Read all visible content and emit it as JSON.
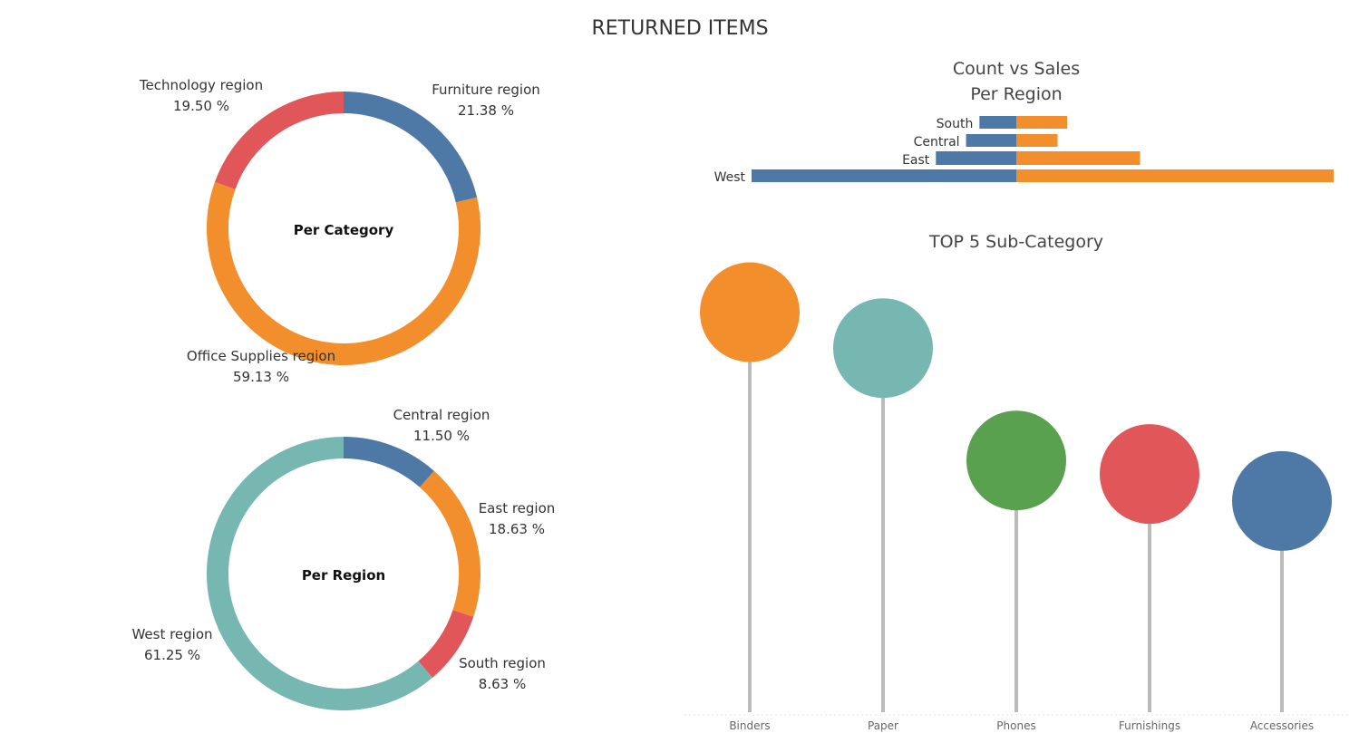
{
  "dashboard": {
    "title": "RETURNED ITEMS"
  },
  "colors": {
    "blue": "#4e79a7",
    "orange": "#f28e2b",
    "red": "#e15759",
    "teal": "#76b7b2",
    "green": "#59a14f",
    "stem": "#bbbbbb"
  },
  "chart_data": [
    {
      "type": "pie",
      "variant": "donut",
      "center_label": "Per Category",
      "slices": [
        {
          "label": "Furniture region",
          "value": 21.38,
          "value_label": "21.38 %",
          "color": "#4e79a7"
        },
        {
          "label": "Office Supplies region",
          "value": 59.13,
          "value_label": "59.13 %",
          "color": "#f28e2b"
        },
        {
          "label": "Technology region",
          "value": 19.5,
          "value_label": "19.50 %",
          "color": "#e15759"
        }
      ]
    },
    {
      "type": "pie",
      "variant": "donut",
      "center_label": "Per Region",
      "slices": [
        {
          "label": "Central region",
          "value": 11.5,
          "value_label": "11.50 %",
          "color": "#4e79a7"
        },
        {
          "label": "East region",
          "value": 18.63,
          "value_label": "18.63 %",
          "color": "#f28e2b"
        },
        {
          "label": "South region",
          "value": 8.63,
          "value_label": "8.63 %",
          "color": "#e15759"
        },
        {
          "label": "West region",
          "value": 61.25,
          "value_label": "61.25 %",
          "color": "#76b7b2"
        }
      ]
    },
    {
      "type": "bar",
      "orientation": "diverging-horizontal",
      "title_lines": [
        "Count vs Sales",
        "Per Region"
      ],
      "categories": [
        "South",
        "Central",
        "East",
        "West"
      ],
      "series": [
        {
          "values": [
            11,
            15,
            24,
            79
          ],
          "color": "#4e79a7"
        },
        {
          "values": [
            16,
            13,
            39,
            100
          ],
          "color": "#f28e2b"
        }
      ],
      "note": "relative bar lengths (West = 100)"
    },
    {
      "type": "scatter",
      "variant": "lollipop",
      "title": "TOP 5 Sub-Category",
      "categories": [
        "Binders",
        "Paper",
        "Phones",
        "Furnishings",
        "Accessories"
      ],
      "values": [
        89,
        81,
        56,
        53,
        47
      ],
      "colors": [
        "#f28e2b",
        "#76b7b2",
        "#59a14f",
        "#e15759",
        "#4e79a7"
      ],
      "ylim": [
        0,
        100
      ],
      "note": "relative lollipop heights; no value axis printed"
    }
  ]
}
